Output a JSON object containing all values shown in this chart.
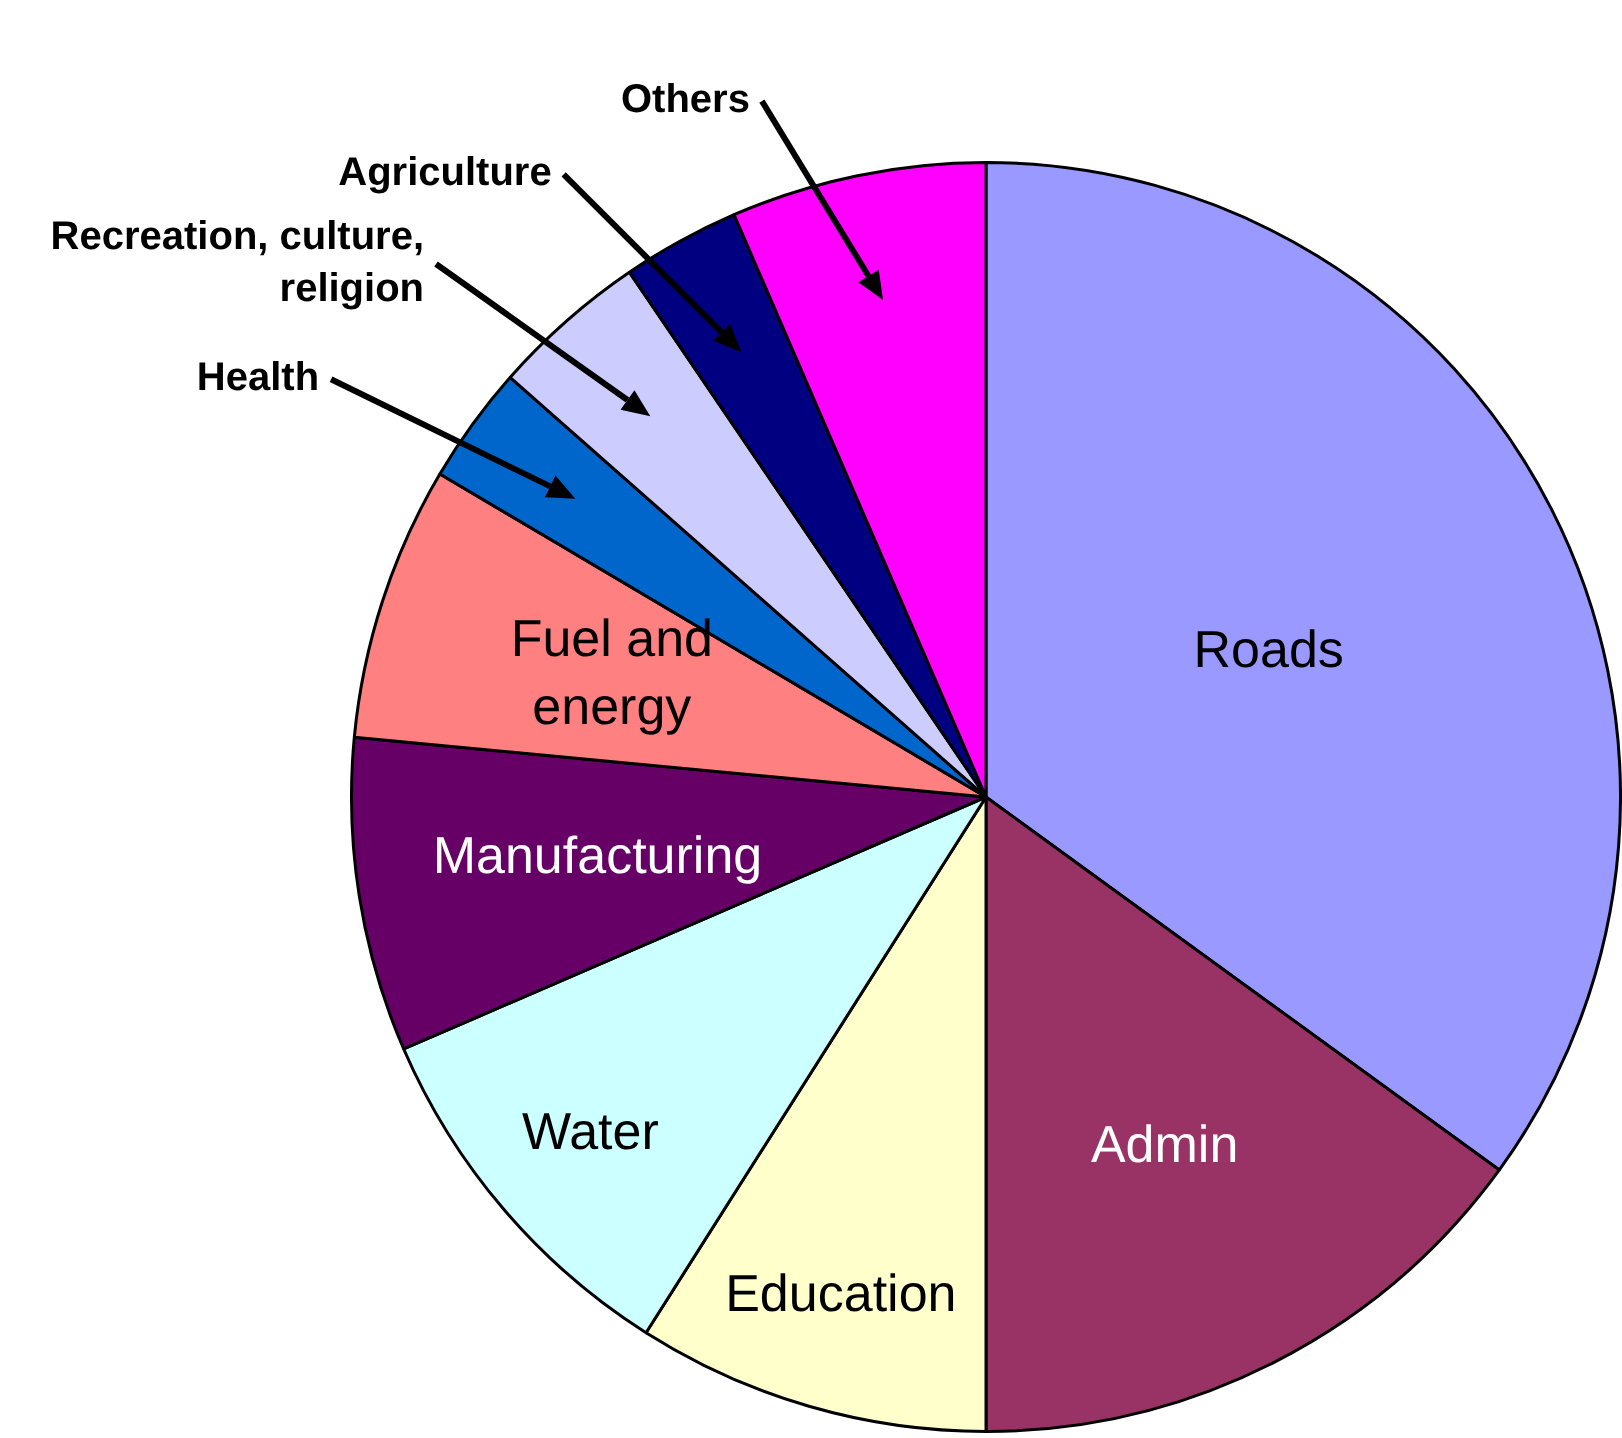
{
  "chart_data": {
    "type": "pie",
    "categories": [
      "Roads",
      "Admin",
      "Education",
      "Water",
      "Manufacturing",
      "Fuel and energy",
      "Health",
      "Recreation, culture, religion",
      "Agriculture",
      "Others"
    ],
    "values": [
      35,
      15,
      9,
      9.5,
      8,
      7,
      3,
      4,
      3,
      6.5
    ],
    "colors": [
      "#9999ff",
      "#993366",
      "#ffffcc",
      "#ccffff",
      "#660066",
      "#ff8080",
      "#0066cc",
      "#ccccff",
      "#000080",
      "#ff00ff"
    ]
  }
}
